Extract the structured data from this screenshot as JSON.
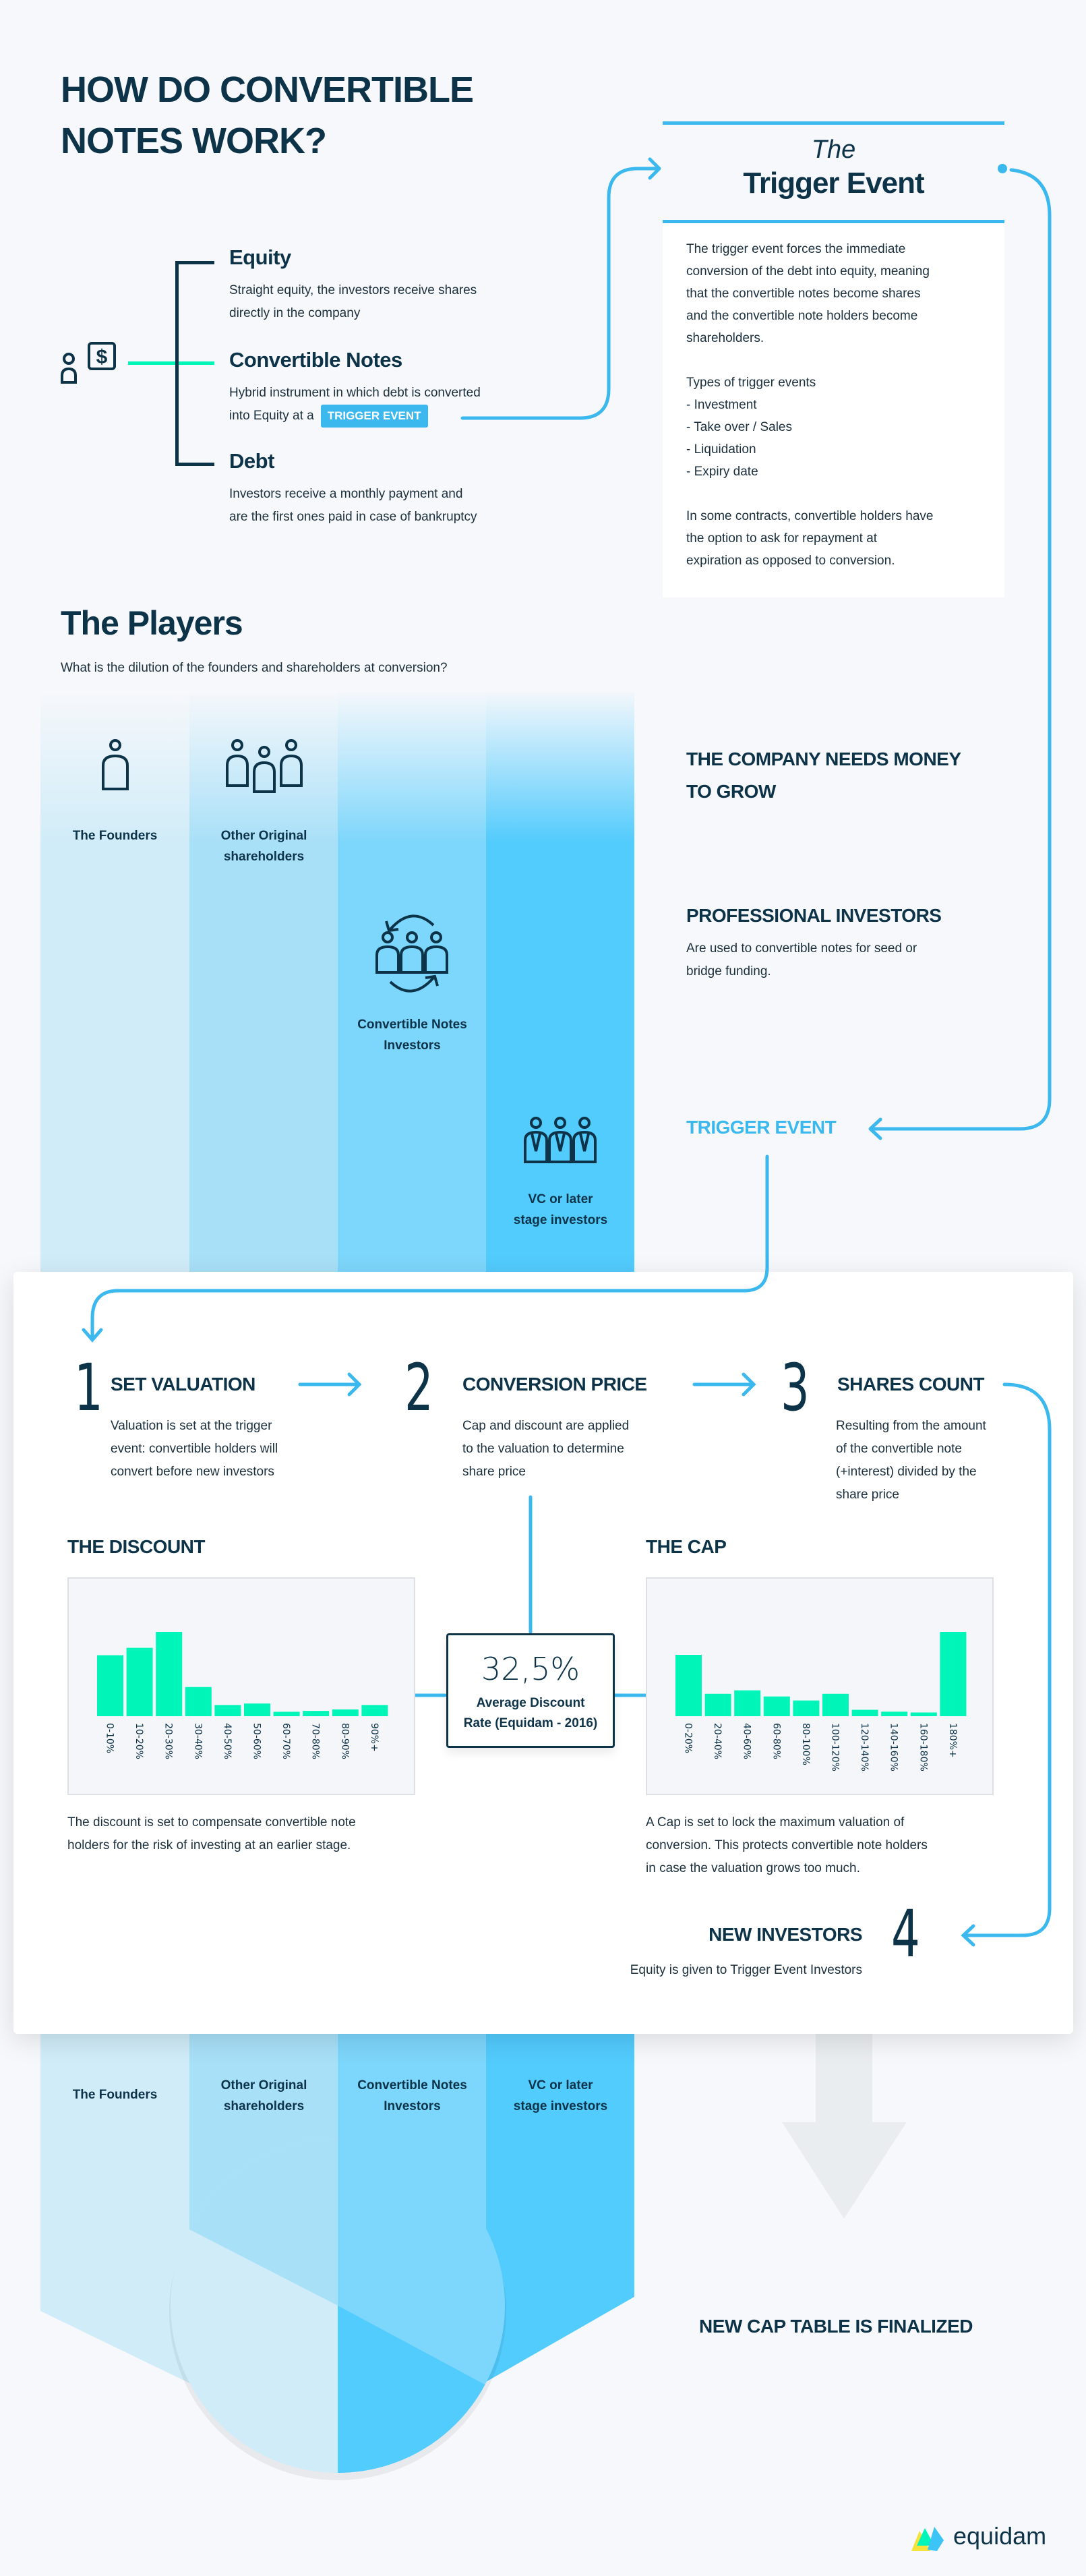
{
  "title_lines": [
    "HOW DO CONVERTIBLE",
    "NOTES WORK?"
  ],
  "colors": {
    "navy": "#0d3349",
    "accent_blue": "#3bb8ee",
    "bar_green": "#00f5b8",
    "col1": "#d0ecf8",
    "col2": "#a8e0f8",
    "col3": "#7dd6fb",
    "col4": "#52cbfd"
  },
  "icons": {
    "investor": "person-dollar-icon",
    "founder": "person-icon",
    "shareholders": "group-icon",
    "cn_investors": "group-cycle-icon",
    "vc": "suited-group-icon"
  },
  "instruments": [
    {
      "title": "Equity",
      "desc": [
        "Straight equity, the investors receive shares",
        "directly in the company"
      ]
    },
    {
      "title": "Convertible Notes",
      "desc": [
        "Hybrid instrument in which debt is converted",
        "into Equity at a"
      ],
      "badge": "TRIGGER EVENT"
    },
    {
      "title": "Debt",
      "desc": [
        "Investors receive a monthly payment and",
        "are the first ones paid in case of bankruptcy"
      ]
    }
  ],
  "trigger_box": {
    "the": "The",
    "title": "Trigger Event",
    "para1": [
      "The trigger event forces the immediate",
      "conversion of the debt into equity, meaning",
      "that the convertible notes become shares",
      "and the convertible note holders become",
      "shareholders."
    ],
    "types": [
      "Types of trigger events",
      "- Investment",
      "- Take over / Sales",
      "- Liquidation",
      "- Expiry date"
    ],
    "para2": [
      "In some contracts, convertible holders have",
      "the option to ask for repayment at",
      "expiration as opposed to conversion."
    ]
  },
  "players": {
    "title": "The Players",
    "subtitle": "What is the dilution of the founders and shareholders at conversion?",
    "columns": [
      {
        "label": [
          "The Founders"
        ]
      },
      {
        "label": [
          "Other Original",
          "shareholders"
        ]
      },
      {
        "label": [
          "Convertible Notes",
          "Investors"
        ]
      },
      {
        "label": [
          "VC or later",
          "stage investors"
        ]
      }
    ],
    "side": {
      "needs_money": [
        "THE COMPANY NEEDS MONEY",
        "TO GROW"
      ],
      "pro_title": "PROFESSIONAL INVESTORS",
      "pro_desc": [
        "Are used to convertible notes for seed or",
        "bridge funding."
      ],
      "trigger": "TRIGGER EVENT"
    }
  },
  "steps": [
    {
      "num": "1",
      "title": "SET VALUATION",
      "desc": [
        "Valuation is set at the trigger",
        "event: convertible holders will",
        "convert before new investors"
      ]
    },
    {
      "num": "2",
      "title": "CONVERSION PRICE",
      "desc": [
        "Cap and discount are applied",
        "to the valuation to determine",
        "share price"
      ]
    },
    {
      "num": "3",
      "title": "SHARES COUNT",
      "desc": [
        "Resulting from the amount",
        "of the convertible note",
        "(+interest) divided by the",
        "share price"
      ]
    },
    {
      "num": "4",
      "title": "NEW INVESTORS",
      "desc": [
        "Equity is given to Trigger Event Investors"
      ]
    }
  ],
  "discount": {
    "title": "THE DISCOUNT",
    "desc": [
      "The discount is set to compensate convertible note",
      "holders for the risk of investing at an earlier stage."
    ]
  },
  "cap": {
    "title": "THE CAP",
    "desc": [
      "A Cap is set to lock the maximum valuation of",
      "conversion. This protects convertible note holders",
      "in case the valuation grows too much."
    ]
  },
  "average": {
    "value": "32,5%",
    "label": [
      "Average Discount",
      "Rate (Equidam - 2016)"
    ]
  },
  "chart_data": [
    {
      "type": "bar",
      "title": "THE DISCOUNT",
      "categories": [
        "0-10%",
        "10-20%",
        "20-30%",
        "30-40%",
        "40-50%",
        "50-60%",
        "60-70%",
        "70-80%",
        "80-90%",
        "90%+"
      ],
      "values": [
        20.7,
        23.2,
        28.6,
        9.9,
        3.8,
        4.3,
        1.5,
        1.8,
        2.3,
        3.8
      ],
      "grid": false,
      "color": "#00f5b8"
    },
    {
      "type": "bar",
      "title": "THE CAP",
      "categories": [
        "0-20%",
        "20-40%",
        "40-60%",
        "60-80%",
        "80-100%",
        "100-120%",
        "120-140%",
        "140-160%",
        "160-180%",
        "180%+"
      ],
      "values": [
        23.0,
        8.4,
        9.7,
        7.4,
        5.9,
        8.4,
        2.4,
        1.7,
        1.4,
        31.6
      ],
      "grid": false,
      "color": "#00f5b8"
    }
  ],
  "bottom": {
    "columns": [
      [
        "The Founders"
      ],
      [
        "Other Original",
        "shareholders"
      ],
      [
        "Convertible Notes",
        "Investors"
      ],
      [
        "VC or later",
        "stage investors"
      ]
    ],
    "final": "NEW CAP TABLE IS FINALIZED"
  },
  "brand": "equidam"
}
